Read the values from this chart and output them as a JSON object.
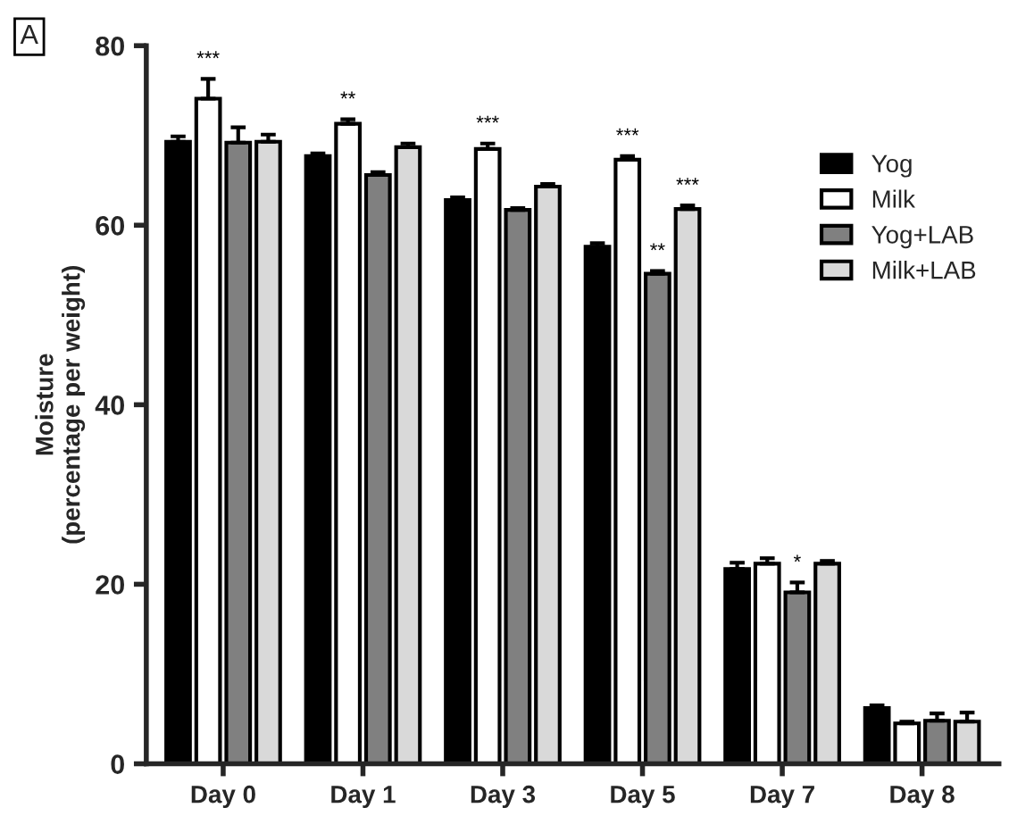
{
  "chart_data": {
    "type": "bar",
    "ylabel": "Moisture\n(percentage per weight)",
    "categories": [
      "Day 0",
      "Day 1",
      "Day 3",
      "Day 5",
      "Day 7",
      "Day 8"
    ],
    "series": [
      {
        "name": "Yog",
        "color": "#000000",
        "values": [
          69.3,
          67.7,
          62.8,
          57.6,
          21.7,
          6.2
        ],
        "errors": [
          0.6,
          0.3,
          0.3,
          0.4,
          0.7,
          0.3
        ]
      },
      {
        "name": "Milk",
        "color": "#ffffff",
        "values": [
          74.1,
          71.3,
          68.5,
          67.3,
          22.3,
          4.5
        ],
        "errors": [
          2.2,
          0.5,
          0.6,
          0.4,
          0.6,
          0.2
        ]
      },
      {
        "name": "Yog+LAB",
        "color": "#808080",
        "values": [
          69.2,
          65.6,
          61.7,
          54.6,
          19.1,
          4.8
        ],
        "errors": [
          1.7,
          0.3,
          0.2,
          0.3,
          1.1,
          0.8
        ]
      },
      {
        "name": "Milk+LAB",
        "color": "#d9d9d9",
        "values": [
          69.3,
          68.7,
          64.3,
          61.8,
          22.3,
          4.7
        ],
        "errors": [
          0.8,
          0.4,
          0.3,
          0.4,
          0.3,
          1.0
        ]
      }
    ],
    "ylim": [
      0,
      80
    ],
    "yticks": [
      0,
      20,
      40,
      60,
      80
    ],
    "grid": false,
    "legend": "top right",
    "annotations": [
      "A",
      {
        "text": "***",
        "x": "Day 0",
        "y": 74.1
      },
      {
        "text": "**",
        "x": "Day 1",
        "y": 71.3
      },
      {
        "text": "***",
        "x": "Day 3",
        "y": 68.5
      },
      {
        "text": "***",
        "x": "Day 5",
        "y": 67.3
      },
      {
        "text": "**",
        "x": "Day 5",
        "y": 54.6
      },
      {
        "text": "***",
        "x": "Day 5",
        "y": 61.8
      },
      {
        "text": "*",
        "x": "Day 7",
        "y": 19.1
      }
    ]
  }
}
